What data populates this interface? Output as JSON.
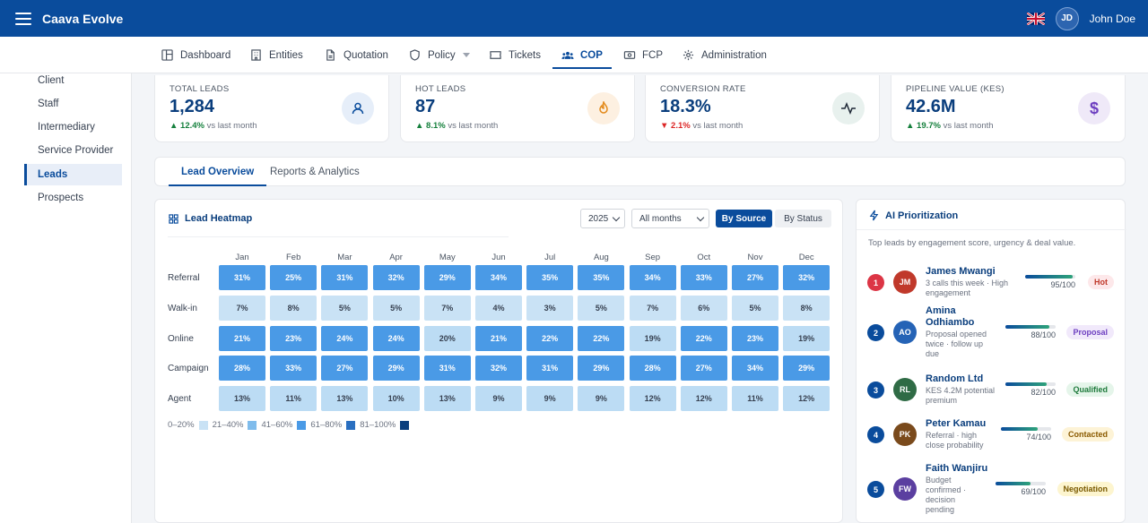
{
  "app": {
    "title": "Caava Evolve",
    "user_name": "John Doe",
    "user_initials": "JD"
  },
  "nav": [
    {
      "label": "Dashboard",
      "icon": "layout-icon"
    },
    {
      "label": "Entities",
      "icon": "building-icon"
    },
    {
      "label": "Quotation",
      "icon": "document-icon"
    },
    {
      "label": "Policy",
      "icon": "shield-icon"
    },
    {
      "label": "Tickets",
      "icon": "ticket-icon"
    },
    {
      "label": "COP",
      "icon": "users-icon",
      "active": true
    },
    {
      "label": "FCP",
      "icon": "money-icon"
    },
    {
      "label": "Administration",
      "icon": "gear-icon"
    }
  ],
  "sidebar": {
    "items": [
      {
        "label": "Client"
      },
      {
        "label": "Staff"
      },
      {
        "label": "Intermediary"
      },
      {
        "label": "Service Provider"
      },
      {
        "label": "Leads",
        "active": true
      },
      {
        "label": "Prospects"
      }
    ]
  },
  "kpis": [
    {
      "label": "TOTAL LEADS",
      "value": "1,284",
      "delta": "12.4%",
      "delta_suffix": "vs last month",
      "trend": "up",
      "icon": "user-icon",
      "icon_bg": "#e6eef9",
      "icon_color": "#0a4c9c"
    },
    {
      "label": "HOT LEADS",
      "value": "87",
      "delta": "8.1%",
      "delta_suffix": "vs last month",
      "trend": "up",
      "icon": "flame-icon",
      "icon_bg": "#fdf0e1",
      "icon_color": "#e38a1b"
    },
    {
      "label": "CONVERSION RATE",
      "value": "18.3%",
      "delta": "2.1%",
      "delta_suffix": "vs last month",
      "trend": "down",
      "icon": "activity-icon",
      "icon_bg": "#e8f1ee",
      "icon_color": "#1f2937"
    },
    {
      "label": "PIPELINE VALUE (KES)",
      "value": "42.6M",
      "delta": "19.7%",
      "delta_suffix": "vs last month",
      "trend": "up",
      "icon": "dollar-icon",
      "icon_bg": "#efe9f8",
      "icon_color": "#6d3fc0"
    }
  ],
  "tabs": [
    {
      "label": "Lead Overview",
      "active": true
    },
    {
      "label": "Reports & Analytics"
    }
  ],
  "heatmap": {
    "title": "Lead Heatmap",
    "year": "2025",
    "period": "All months",
    "toggle": [
      {
        "label": "By Source",
        "active": true
      },
      {
        "label": "By Status"
      }
    ],
    "months": [
      "Jan",
      "Feb",
      "Mar",
      "Apr",
      "May",
      "Jun",
      "Jul",
      "Aug",
      "Sep",
      "Oct",
      "Nov",
      "Dec"
    ],
    "rows": [
      {
        "label": "Referral",
        "values": [
          "31%",
          "25%",
          "31%",
          "32%",
          "29%",
          "34%",
          "35%",
          "35%",
          "34%",
          "33%",
          "27%",
          "32%"
        ],
        "levels": [
          3,
          3,
          3,
          3,
          3,
          3,
          3,
          3,
          3,
          3,
          3,
          3
        ]
      },
      {
        "label": "Walk-in",
        "values": [
          "7%",
          "8%",
          "5%",
          "5%",
          "7%",
          "4%",
          "3%",
          "5%",
          "7%",
          "6%",
          "5%",
          "8%"
        ],
        "levels": [
          1,
          1,
          1,
          1,
          1,
          1,
          1,
          1,
          1,
          1,
          1,
          1
        ]
      },
      {
        "label": "Online",
        "values": [
          "21%",
          "23%",
          "24%",
          "24%",
          "20%",
          "21%",
          "22%",
          "22%",
          "19%",
          "22%",
          "23%",
          "19%"
        ],
        "levels": [
          3,
          3,
          3,
          3,
          2,
          3,
          3,
          3,
          2,
          3,
          3,
          2
        ]
      },
      {
        "label": "Campaign",
        "values": [
          "28%",
          "33%",
          "27%",
          "29%",
          "31%",
          "32%",
          "31%",
          "29%",
          "28%",
          "27%",
          "34%",
          "29%"
        ],
        "levels": [
          3,
          3,
          3,
          3,
          3,
          3,
          3,
          3,
          3,
          3,
          3,
          3
        ]
      },
      {
        "label": "Agent",
        "values": [
          "13%",
          "11%",
          "13%",
          "10%",
          "13%",
          "9%",
          "9%",
          "9%",
          "12%",
          "12%",
          "11%",
          "12%"
        ],
        "levels": [
          2,
          2,
          2,
          2,
          2,
          2,
          2,
          2,
          2,
          2,
          2,
          2
        ]
      }
    ],
    "legend": [
      {
        "label": "0–20%",
        "color": "#c9e2f5"
      },
      {
        "label": "21–40%",
        "color": "#7fbcec"
      },
      {
        "label": "41–60%",
        "color": "#4a9ae6"
      },
      {
        "label": "61–80%",
        "color": "#2a6fc0"
      },
      {
        "label": "81–100%",
        "color": "#0a3e7d"
      }
    ]
  },
  "ai": {
    "title": "AI Prioritization",
    "subtitle": "Top leads by engagement score, urgency & deal value.",
    "leads": [
      {
        "rank": "1",
        "initials": "JM",
        "name": "James Mwangi",
        "desc": [
          "3 calls this week · High",
          "engagement"
        ],
        "score": "95/100",
        "pct": 95,
        "status": "Hot",
        "rank_color": "#dc3545",
        "av_color": "#c0392b",
        "badge_bg": "#fde8ea",
        "badge_fg": "#c0392b"
      },
      {
        "rank": "2",
        "initials": "AO",
        "name": [
          "Amina",
          "Odhiambo"
        ],
        "desc": [
          "Proposal opened",
          "twice · follow up",
          "due"
        ],
        "score": "88/100",
        "pct": 88,
        "status": "Proposal",
        "rank_color": "#0a4c9c",
        "av_color": "#2563b6",
        "badge_bg": "#f1e9fb",
        "badge_fg": "#6d3fc0"
      },
      {
        "rank": "3",
        "initials": "RL",
        "name": "Random Ltd",
        "desc": [
          "KES 4.2M potential",
          "premium"
        ],
        "score": "82/100",
        "pct": 82,
        "status": "Qualified",
        "rank_color": "#0a4c9c",
        "av_color": "#2f6b45",
        "badge_bg": "#e5f5ea",
        "badge_fg": "#1f7a3c"
      },
      {
        "rank": "4",
        "initials": "PK",
        "name": "Peter Kamau",
        "desc": [
          "Referral · high",
          "close probability"
        ],
        "score": "74/100",
        "pct": 74,
        "status": "Contacted",
        "rank_color": "#0a4c9c",
        "av_color": "#7a4a1c",
        "badge_bg": "#fdf3d6",
        "badge_fg": "#8a5a00"
      },
      {
        "rank": "5",
        "initials": "FW",
        "name": "Faith Wanjiru",
        "desc": [
          "Budget",
          "confirmed ·",
          "decision",
          "pending"
        ],
        "score": "69/100",
        "pct": 69,
        "status": "Negotiation",
        "rank_color": "#0a4c9c",
        "av_color": "#5b3fa0",
        "badge_bg": "#fdf5cf",
        "badge_fg": "#7a5a00"
      }
    ]
  }
}
